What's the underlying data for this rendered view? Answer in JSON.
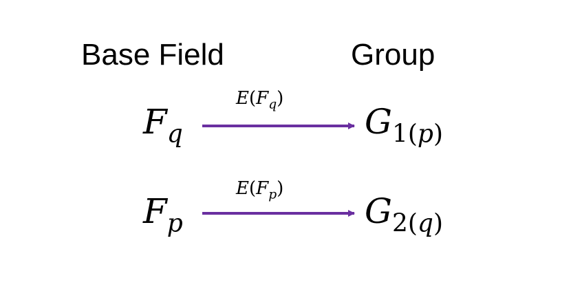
{
  "headings": {
    "left": "Base Field",
    "right": "Group"
  },
  "rows": [
    {
      "field": {
        "base": "F",
        "sub": "q"
      },
      "label": {
        "func": "E",
        "open": "(",
        "base": "F",
        "sub": "q",
        "close": ")"
      },
      "group": {
        "base": "G",
        "sub_num": "1",
        "sub_open": "(",
        "sub_var": "p",
        "sub_close": ")"
      }
    },
    {
      "field": {
        "base": "F",
        "sub": "p"
      },
      "label": {
        "func": "E",
        "open": "(",
        "base": "F",
        "sub": "p",
        "close": ")"
      },
      "group": {
        "base": "G",
        "sub_num": "2",
        "sub_open": "(",
        "sub_var": "q",
        "sub_close": ")"
      }
    }
  ],
  "colors": {
    "arrow": "#6a2fa0",
    "text": "#000000",
    "background": "#ffffff"
  }
}
